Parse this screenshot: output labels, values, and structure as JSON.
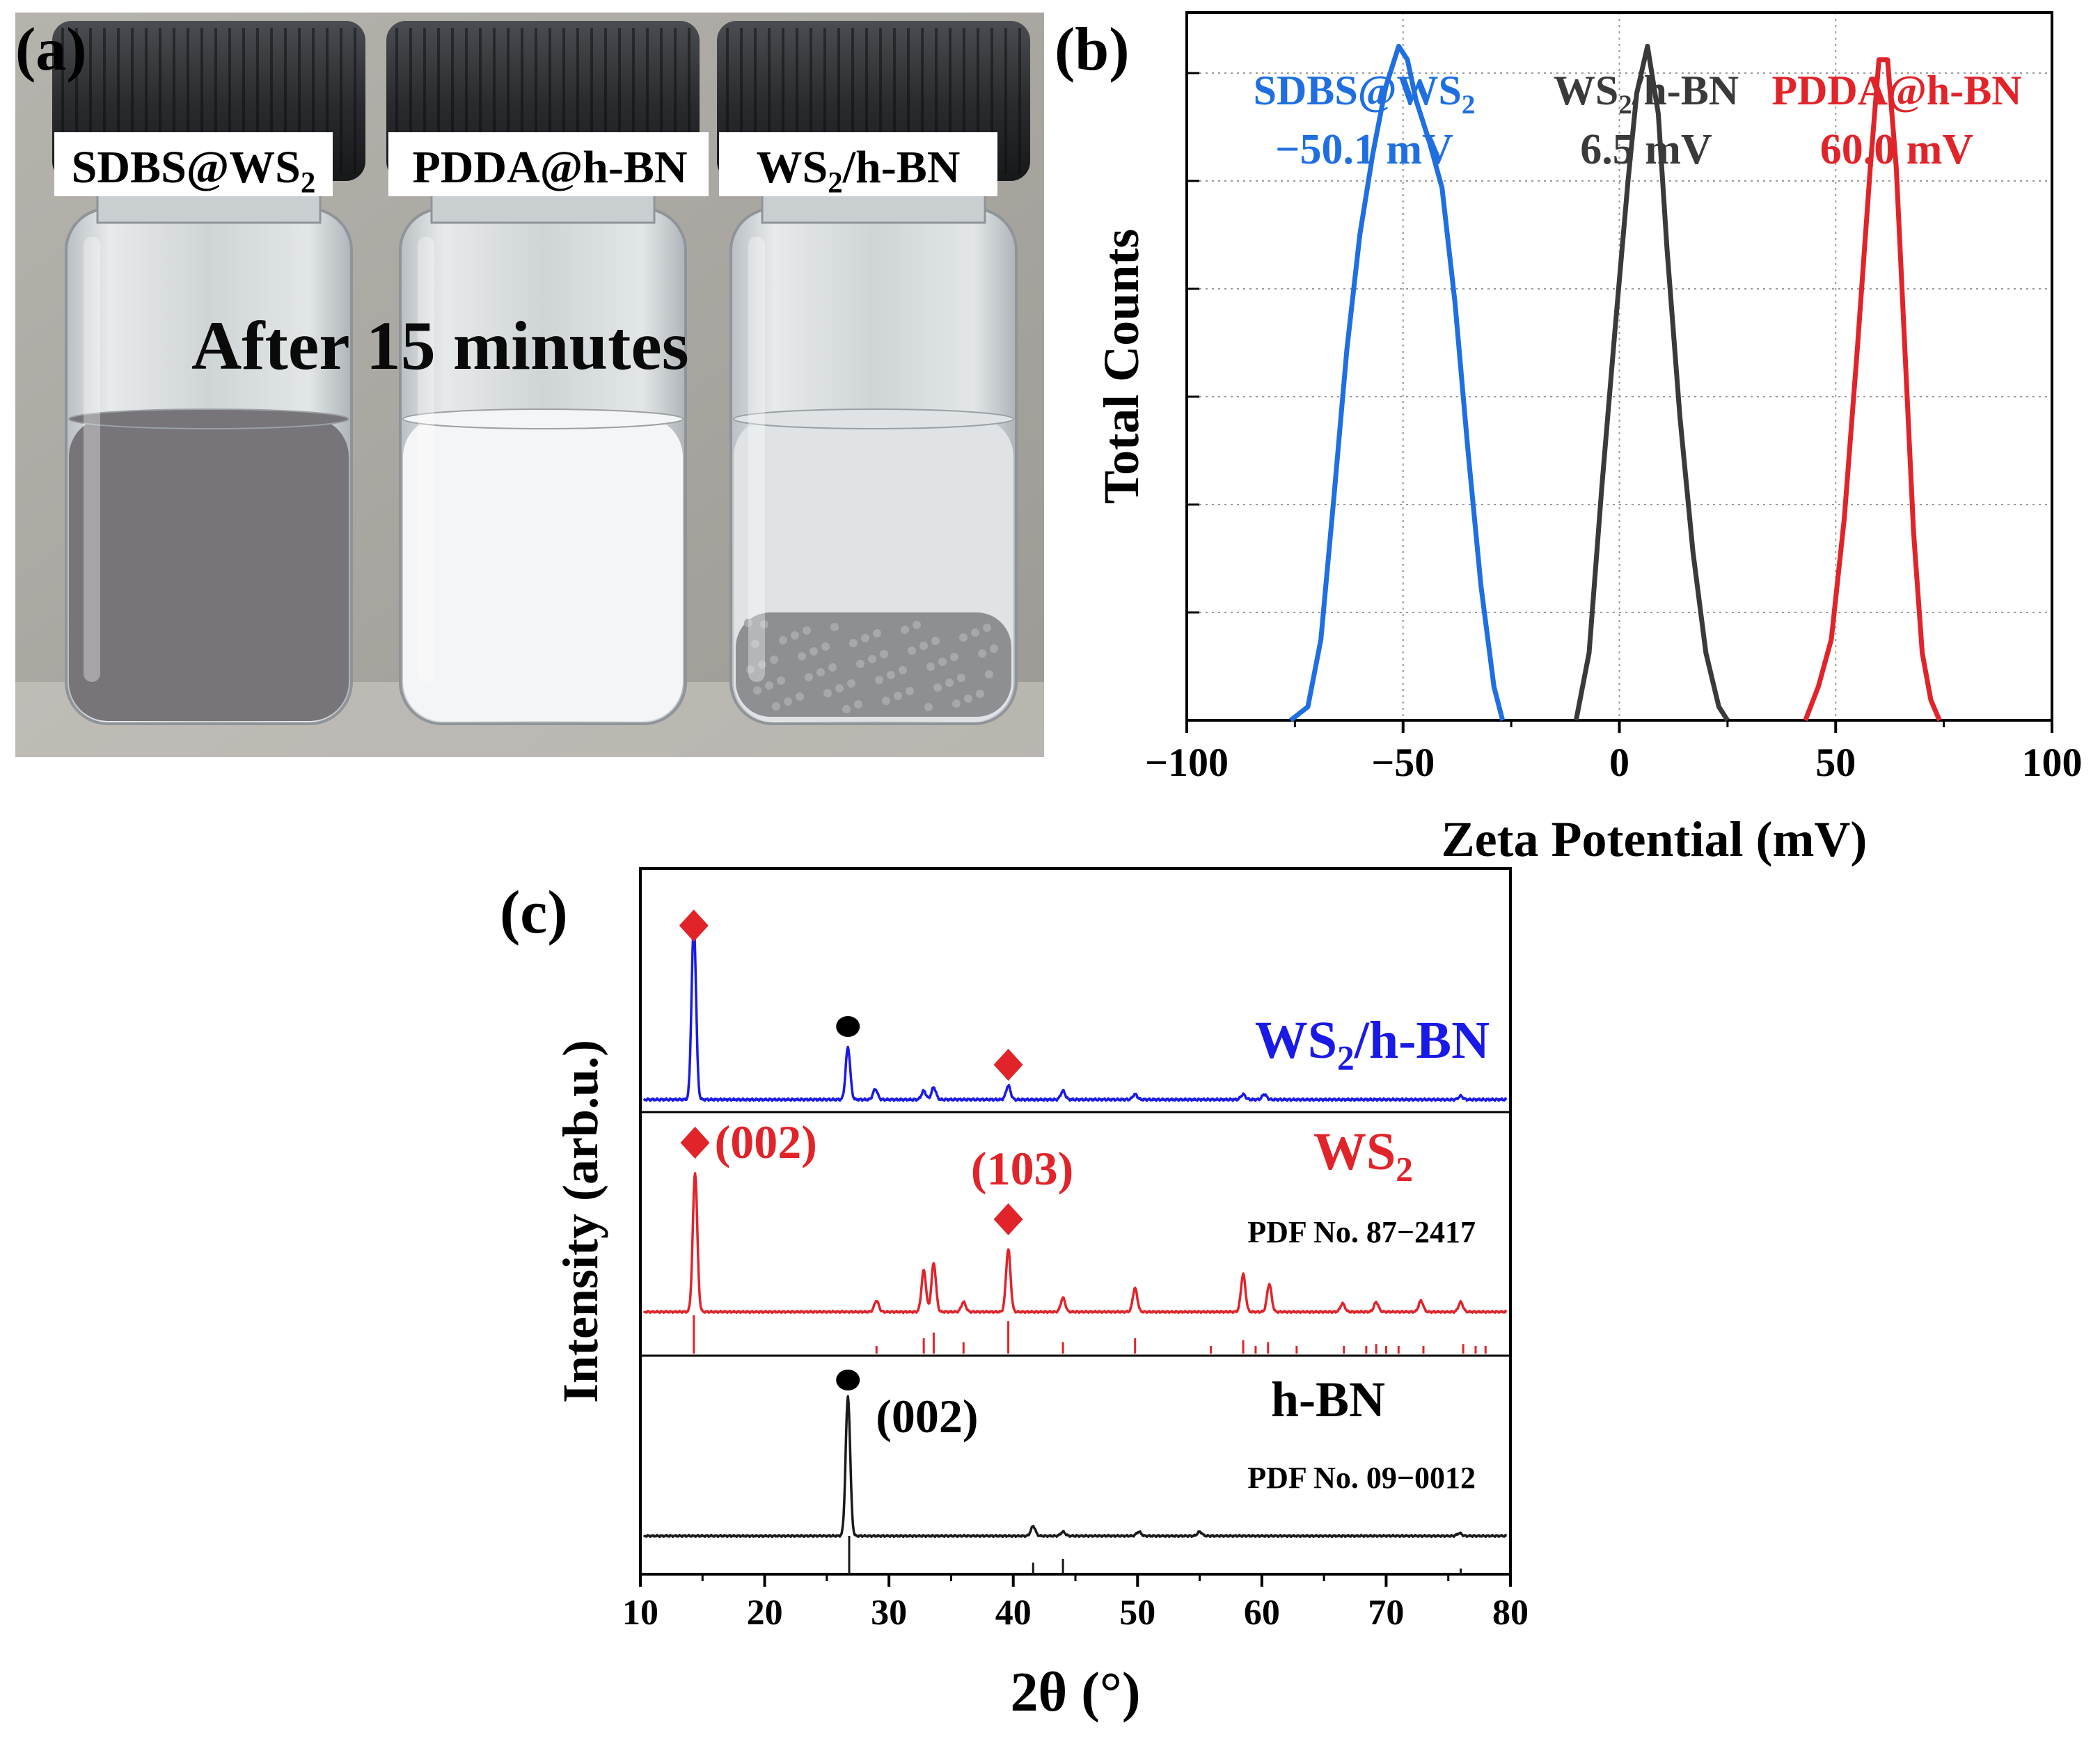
{
  "panel_a": {
    "tag": "(a)",
    "caption": "After 15 minutes",
    "vials": [
      {
        "label_main": "SDBS@WS",
        "label_sub": "2",
        "label_tail": "",
        "liquid_color": "#77747a",
        "sediment": false
      },
      {
        "label_main": "PDDA@h-BN",
        "label_sub": "",
        "label_tail": "",
        "liquid_color": "#f4f5f6",
        "sediment": false
      },
      {
        "label_main": "WS",
        "label_sub": "2",
        "label_tail": "/h-BN",
        "liquid_color": "#dfe3e6",
        "sediment": true
      }
    ]
  },
  "colors": {
    "blue": "#1f6fe0",
    "red": "#e0242a",
    "black": "#1a1a1a",
    "xrd_blue": "#1a1ae6",
    "grey_curve": "#3a3a3a"
  },
  "chart_data": [
    {
      "panel": "(b)",
      "type": "line",
      "title": "",
      "xlabel": "Zeta Potential (mV)",
      "ylabel": "Total Counts",
      "xlim": [
        -100,
        100
      ],
      "ylim": [
        0,
        1.05
      ],
      "xticks": [
        -100,
        -50,
        0,
        50,
        100
      ],
      "xtick_labels": [
        "−100",
        "−50",
        "0",
        "50",
        "100"
      ],
      "grid": true,
      "series": [
        {
          "name": "SDBS@WS2",
          "label_main": "SDBS@WS",
          "label_sub": "2",
          "label_tail": "",
          "value_label": "−50.1 mV",
          "color": "#1f6fe0",
          "x": [
            -76,
            -72,
            -69,
            -66,
            -63,
            -60,
            -57,
            -54,
            -51,
            -49,
            -47,
            -44,
            -41,
            -38,
            -35,
            -32,
            -29,
            -27
          ],
          "y": [
            0,
            0.02,
            0.12,
            0.33,
            0.55,
            0.72,
            0.84,
            0.94,
            1.0,
            0.98,
            0.92,
            0.86,
            0.79,
            0.62,
            0.4,
            0.2,
            0.05,
            0
          ]
        },
        {
          "name": "WS2/h-BN",
          "label_main": "WS",
          "label_sub": "2",
          "label_tail": "/h-BN",
          "value_label": "6.5 mV",
          "color": "#3a3a3a",
          "x": [
            -10,
            -7,
            -4,
            -1,
            2,
            4,
            6.5,
            9,
            11,
            14,
            17,
            20,
            23,
            25
          ],
          "y": [
            0,
            0.1,
            0.35,
            0.58,
            0.8,
            0.93,
            1.0,
            0.9,
            0.7,
            0.45,
            0.25,
            0.1,
            0.02,
            0
          ]
        },
        {
          "name": "PDDA@h-BN",
          "label_main": "PDDA@h-BN",
          "label_sub": "",
          "label_tail": "",
          "value_label": "60.0 mV",
          "color": "#e0242a",
          "x": [
            43,
            46,
            49,
            52,
            55,
            58,
            60,
            62,
            64,
            66,
            68,
            70,
            72,
            74
          ],
          "y": [
            0,
            0.05,
            0.12,
            0.3,
            0.55,
            0.82,
            0.98,
            0.98,
            0.82,
            0.55,
            0.28,
            0.1,
            0.03,
            0
          ]
        }
      ]
    },
    {
      "panel": "(c)",
      "type": "line",
      "title": "",
      "xlabel": "2θ (°)",
      "ylabel": "Intensity (arb.u.)",
      "xlim": [
        10,
        80
      ],
      "xticks": [
        10,
        20,
        30,
        40,
        50,
        60,
        70,
        80
      ],
      "stacked_panels": [
        {
          "name": "WS2/h-BN",
          "label_main": "WS",
          "label_sub": "2",
          "label_tail": "/h-BN",
          "color": "#1a1ae6",
          "pdf": "",
          "peaks": [
            {
              "x": 14.3,
              "h": 1.0
            },
            {
              "x": 26.7,
              "h": 0.3
            },
            {
              "x": 28.9,
              "h": 0.06
            },
            {
              "x": 32.8,
              "h": 0.05
            },
            {
              "x": 33.6,
              "h": 0.07
            },
            {
              "x": 39.6,
              "h": 0.08
            },
            {
              "x": 44.0,
              "h": 0.05
            },
            {
              "x": 49.8,
              "h": 0.03
            },
            {
              "x": 58.5,
              "h": 0.03
            },
            {
              "x": 60.2,
              "h": 0.03
            },
            {
              "x": 76.0,
              "h": 0.02
            }
          ],
          "markers": [
            {
              "x": 14.3,
              "shape": "diamond",
              "label": ""
            },
            {
              "x": 26.7,
              "shape": "circle",
              "label": ""
            },
            {
              "x": 39.6,
              "shape": "diamond",
              "label": ""
            }
          ],
          "ref_lines": []
        },
        {
          "name": "WS2",
          "label_main": "WS",
          "label_sub": "2",
          "label_tail": "",
          "color": "#e0242a",
          "pdf": "PDF No. 87−2417",
          "peaks": [
            {
              "x": 14.4,
              "h": 1.0
            },
            {
              "x": 29.0,
              "h": 0.08
            },
            {
              "x": 32.8,
              "h": 0.3
            },
            {
              "x": 33.6,
              "h": 0.35
            },
            {
              "x": 36.0,
              "h": 0.07
            },
            {
              "x": 39.6,
              "h": 0.45
            },
            {
              "x": 44.0,
              "h": 0.1
            },
            {
              "x": 49.8,
              "h": 0.17
            },
            {
              "x": 58.5,
              "h": 0.27
            },
            {
              "x": 60.6,
              "h": 0.2
            },
            {
              "x": 66.5,
              "h": 0.06
            },
            {
              "x": 69.2,
              "h": 0.07
            },
            {
              "x": 72.8,
              "h": 0.08
            },
            {
              "x": 76.0,
              "h": 0.07
            }
          ],
          "markers": [
            {
              "x": 14.4,
              "shape": "diamond",
              "label": "(002)"
            },
            {
              "x": 39.6,
              "shape": "diamond",
              "label": "(103)"
            }
          ],
          "ref_lines": [
            {
              "x": 14.3,
              "h": 1.0
            },
            {
              "x": 29.0,
              "h": 0.2
            },
            {
              "x": 32.8,
              "h": 0.4
            },
            {
              "x": 33.6,
              "h": 0.55
            },
            {
              "x": 36.0,
              "h": 0.3
            },
            {
              "x": 39.6,
              "h": 0.85
            },
            {
              "x": 44.0,
              "h": 0.3
            },
            {
              "x": 49.8,
              "h": 0.4
            },
            {
              "x": 55.9,
              "h": 0.2
            },
            {
              "x": 58.5,
              "h": 0.35
            },
            {
              "x": 59.5,
              "h": 0.2
            },
            {
              "x": 60.5,
              "h": 0.3
            },
            {
              "x": 62.8,
              "h": 0.2
            },
            {
              "x": 66.6,
              "h": 0.2
            },
            {
              "x": 68.4,
              "h": 0.2
            },
            {
              "x": 69.2,
              "h": 0.25
            },
            {
              "x": 70.0,
              "h": 0.2
            },
            {
              "x": 71.0,
              "h": 0.2
            },
            {
              "x": 73.0,
              "h": 0.2
            },
            {
              "x": 76.2,
              "h": 0.25
            },
            {
              "x": 77.2,
              "h": 0.2
            },
            {
              "x": 78.0,
              "h": 0.2
            }
          ]
        },
        {
          "name": "h-BN",
          "label_main": "h-BN",
          "label_sub": "",
          "label_tail": "",
          "color": "#1a1a1a",
          "pdf": "PDF No. 09−0012",
          "peaks": [
            {
              "x": 26.7,
              "h": 1.0
            },
            {
              "x": 41.6,
              "h": 0.07
            },
            {
              "x": 44.0,
              "h": 0.03
            },
            {
              "x": 50.1,
              "h": 0.03
            },
            {
              "x": 55.0,
              "h": 0.03
            },
            {
              "x": 75.9,
              "h": 0.02
            }
          ],
          "markers": [
            {
              "x": 26.7,
              "shape": "circle",
              "label": "(002)"
            }
          ],
          "ref_lines": [
            {
              "x": 26.8,
              "h": 1.0
            },
            {
              "x": 41.6,
              "h": 0.3
            },
            {
              "x": 44.0,
              "h": 0.4
            },
            {
              "x": 76.0,
              "h": 0.15
            }
          ]
        }
      ]
    }
  ]
}
